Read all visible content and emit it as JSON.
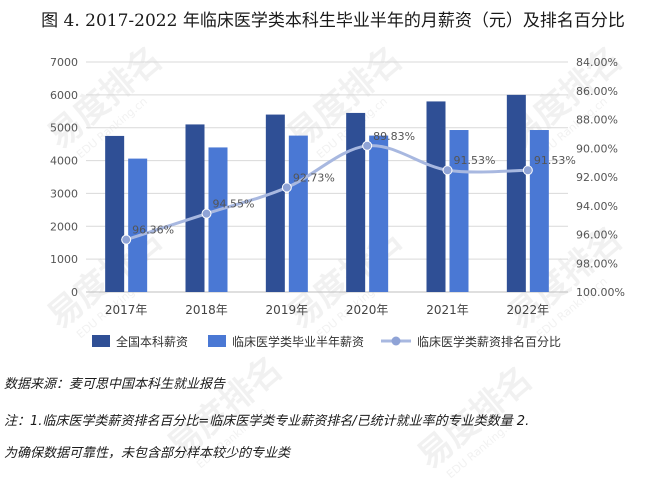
{
  "title": "图 4. 2017-2022 年临床医学类本科生毕业半年的月薪资（元）及排名百分比",
  "chart_data": {
    "type": "bar",
    "categories": [
      "2017年",
      "2018年",
      "2019年",
      "2020年",
      "2021年",
      "2022年"
    ],
    "series": [
      {
        "name": "全国本科薪资",
        "type": "bar",
        "axis": "left",
        "color": "#2f4f95",
        "values": [
          4750,
          5100,
          5400,
          5450,
          5800,
          6000
        ]
      },
      {
        "name": "临床医学类毕业半年薪资",
        "type": "bar",
        "axis": "left",
        "color": "#4a78d4",
        "values": [
          4060,
          4400,
          4760,
          4760,
          4930,
          4930
        ]
      },
      {
        "name": "临床医学类薪资排名百分比",
        "type": "line",
        "axis": "right",
        "color": "#a8b8e0",
        "values": [
          96.36,
          94.55,
          92.73,
          89.83,
          91.53,
          91.53
        ],
        "labels": [
          "96.36%",
          "94.55%",
          "92.73%",
          "89.83%",
          "91.53%",
          "91.53%"
        ]
      }
    ],
    "y_left": {
      "min": 0,
      "max": 7000,
      "ticks": [
        "0",
        "1000",
        "2000",
        "3000",
        "4000",
        "5000",
        "6000",
        "7000"
      ]
    },
    "y_right": {
      "min": 84,
      "max": 100,
      "reversed": true,
      "ticks": [
        "84.00%",
        "86.00%",
        "88.00%",
        "90.00%",
        "92.00%",
        "94.00%",
        "96.00%",
        "98.00%",
        "100.00%"
      ]
    },
    "grid": true,
    "legend_position": "bottom"
  },
  "notes": {
    "source": "数据来源：麦可思中国本科生就业报告",
    "line1": "注：1.临床医学类薪资排名百分比=临床医学类专业薪资排名/已统计就业率的专业类数量 2.",
    "line2": "为确保数据可靠性，未包含部分样本较少的专业类"
  },
  "watermark": {
    "cn": "易度排名",
    "en": "EDU Ranking.cn"
  }
}
